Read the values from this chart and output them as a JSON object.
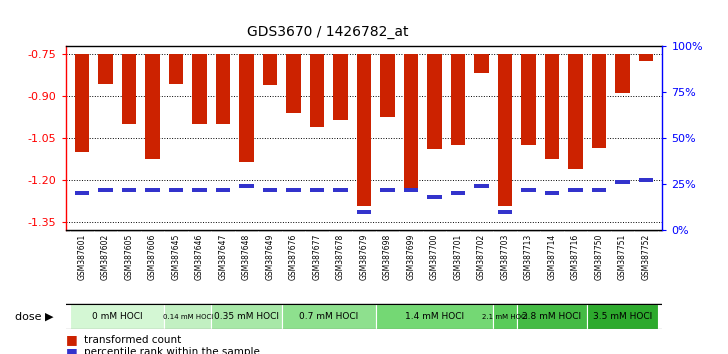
{
  "title": "GDS3670 / 1426782_at",
  "samples": [
    "GSM387601",
    "GSM387602",
    "GSM387605",
    "GSM387606",
    "GSM387645",
    "GSM387646",
    "GSM387647",
    "GSM387648",
    "GSM387649",
    "GSM387676",
    "GSM387677",
    "GSM387678",
    "GSM387679",
    "GSM387698",
    "GSM387699",
    "GSM387700",
    "GSM387701",
    "GSM387702",
    "GSM387703",
    "GSM387713",
    "GSM387714",
    "GSM387716",
    "GSM387750",
    "GSM387751",
    "GSM387752"
  ],
  "transformed_count": [
    -1.1,
    -0.855,
    -1.0,
    -1.125,
    -0.855,
    -1.0,
    -1.0,
    -1.135,
    -0.86,
    -0.96,
    -1.01,
    -0.985,
    -1.295,
    -0.975,
    -1.24,
    -1.09,
    -1.075,
    -0.815,
    -1.295,
    -1.075,
    -1.125,
    -1.16,
    -1.085,
    -0.89,
    -0.775
  ],
  "percentile_rank": [
    20,
    22,
    22,
    22,
    22,
    22,
    22,
    24,
    22,
    22,
    22,
    22,
    10,
    22,
    22,
    18,
    20,
    24,
    10,
    22,
    20,
    22,
    22,
    26,
    27
  ],
  "dose_groups": [
    {
      "label": "0 mM HOCl",
      "start": 0,
      "end": 4,
      "shade": 0
    },
    {
      "label": "0.14 mM HOCl",
      "start": 4,
      "end": 6,
      "shade": 1
    },
    {
      "label": "0.35 mM HOCl",
      "start": 6,
      "end": 9,
      "shade": 2
    },
    {
      "label": "0.7 mM HOCl",
      "start": 9,
      "end": 13,
      "shade": 3
    },
    {
      "label": "1.4 mM HOCl",
      "start": 13,
      "end": 18,
      "shade": 4
    },
    {
      "label": "2.1 mM HOCl",
      "start": 18,
      "end": 19,
      "shade": 5
    },
    {
      "label": "2.8 mM HOCl",
      "start": 19,
      "end": 22,
      "shade": 6
    },
    {
      "label": "3.5 mM HOCl",
      "start": 22,
      "end": 25,
      "shade": 7
    }
  ],
  "dose_colors": [
    "#d4f7d4",
    "#c2f0c2",
    "#a8e8a8",
    "#8ee08e",
    "#74d874",
    "#5acc5a",
    "#44bb44",
    "#2daa2d"
  ],
  "bar_color": "#cc2200",
  "blue_color": "#3333cc",
  "ylim_left": [
    -1.38,
    -0.72
  ],
  "ylim_right": [
    0,
    100
  ],
  "yticks_left": [
    -1.35,
    -1.2,
    -1.05,
    -0.9,
    -0.75
  ],
  "yticks_right": [
    0,
    25,
    50,
    75,
    100
  ],
  "bg_color": "#f0f0f0"
}
